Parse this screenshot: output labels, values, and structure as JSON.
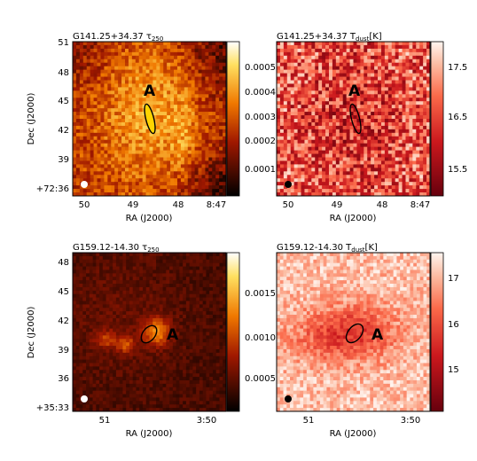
{
  "colors": {
    "tau_cmap": "afmhot",
    "temp_cmap": "reds",
    "marker": "#000000",
    "beam": "#ffffff"
  },
  "panels": [
    {
      "title": "G141.25+34.37 τ",
      "title_sub": "250",
      "xlabel": "RA (J2000)",
      "ylabel": "Dec (J2000)",
      "xticks": [
        "50",
        "49",
        "48",
        "8:47"
      ],
      "yticks": [
        "51",
        "48",
        "45",
        "42",
        "39",
        "+72:36"
      ],
      "colorbar_ticks": [
        "0.0005",
        "0.0004",
        "0.0003",
        "0.0002",
        "0.0001"
      ],
      "label": "A"
    },
    {
      "title": "G141.25+34.37 T",
      "title_sub": "dust",
      "title_unit": "[K]",
      "xlabel": "RA (J2000)",
      "xticks": [
        "50",
        "49",
        "48",
        "8:47"
      ],
      "colorbar_ticks": [
        "17.5",
        "16.5",
        "15.5"
      ],
      "label": "A"
    },
    {
      "title": "G159.12-14.30 τ",
      "title_sub": "250",
      "xlabel": "RA (J2000)",
      "ylabel": "Dec (J2000)",
      "xticks": [
        "51",
        "3:50"
      ],
      "yticks": [
        "48",
        "45",
        "42",
        "39",
        "36",
        "+35:33"
      ],
      "colorbar_ticks": [
        "0.0015",
        "0.0010",
        "0.0005"
      ],
      "label": "A"
    },
    {
      "title": "G159.12-14.30 T",
      "title_sub": "dust",
      "title_unit": "[K]",
      "xlabel": "RA (J2000)",
      "xticks": [
        "51",
        "3:50"
      ],
      "colorbar_ticks": [
        "17",
        "16",
        "15"
      ],
      "label": "A"
    }
  ]
}
